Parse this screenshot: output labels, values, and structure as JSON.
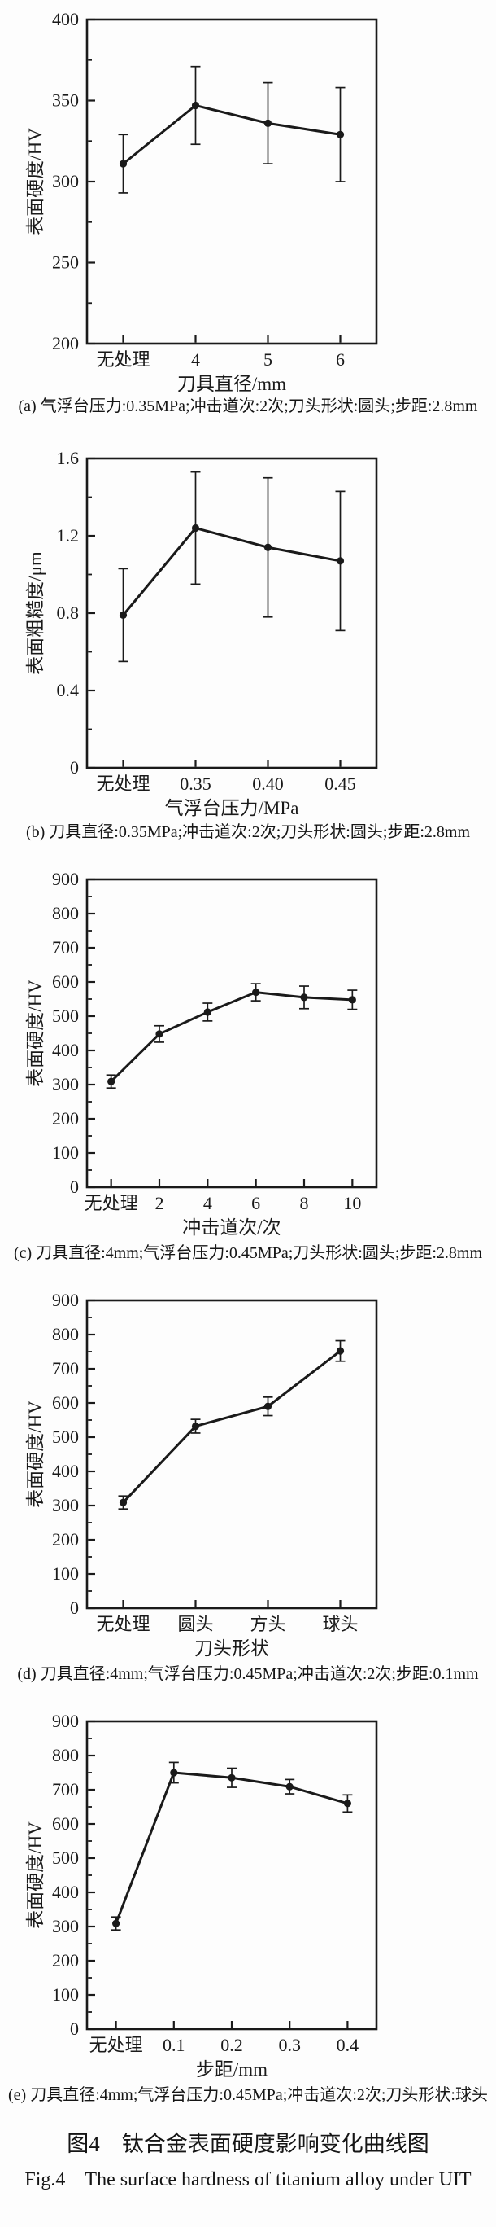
{
  "figure": {
    "caption_cn": "图4　钛合金表面硬度影响变化曲线图",
    "caption_en": "Fig.4　The surface hardness of titanium alloy under UIT",
    "ink_color": "#1a1a1a",
    "background_color": "#fdfdfd"
  },
  "chart_data": [
    {
      "type": "line",
      "panel_label": "(a)",
      "caption": "(a) 气浮台压力:0.35MPa;冲击道次:2次;刀头形状:圆头;步距:2.8mm",
      "xlabel": "刀具直径/mm",
      "ylabel": "表面硬度/HV",
      "ylim": [
        200,
        400
      ],
      "yticks": [
        200,
        250,
        300,
        350,
        400
      ],
      "ytick_labels": [
        "200",
        "250",
        "300",
        "350",
        "400"
      ],
      "minor_ticks_between_majors": true,
      "grid": false,
      "legend": "none",
      "marker": "filled-circle",
      "categories": [
        "无处理",
        "4",
        "5",
        "6"
      ],
      "values": [
        311,
        347,
        336,
        329
      ],
      "errors": [
        18,
        24,
        25,
        29
      ]
    },
    {
      "type": "line",
      "panel_label": "(b)",
      "caption": "(b) 刀具直径:0.35MPa;冲击道次:2次;刀头形状:圆头;步距:2.8mm",
      "xlabel": "气浮台压力/MPa",
      "ylabel": "表面粗糙度/μm",
      "ylim": [
        0,
        1.6
      ],
      "yticks": [
        0,
        0.4,
        0.8,
        1.2,
        1.6
      ],
      "ytick_labels": [
        "0",
        "0.4",
        "0.8",
        "1.2",
        "1.6"
      ],
      "minor_ticks_between_majors": true,
      "grid": false,
      "legend": "none",
      "marker": "filled-circle",
      "categories": [
        "无处理",
        "0.35",
        "0.40",
        "0.45"
      ],
      "values": [
        0.79,
        1.24,
        1.14,
        1.07
      ],
      "errors": [
        0.24,
        0.29,
        0.36,
        0.36
      ]
    },
    {
      "type": "line",
      "panel_label": "(c)",
      "caption": "(c) 刀具直径:4mm;气浮台压力:0.45MPa;刀头形状:圆头;步距:2.8mm",
      "xlabel": "冲击道次/次",
      "ylabel": "表面硬度/HV",
      "ylim": [
        0,
        900
      ],
      "yticks": [
        0,
        100,
        200,
        300,
        400,
        500,
        600,
        700,
        800,
        900
      ],
      "ytick_labels": [
        "0",
        "100",
        "200",
        "300",
        "400",
        "500",
        "600",
        "700",
        "800",
        "900"
      ],
      "minor_ticks_between_majors": true,
      "grid": false,
      "legend": "none",
      "marker": "filled-circle",
      "categories": [
        "无处理",
        "2",
        "4",
        "6",
        "8",
        "10"
      ],
      "values": [
        309,
        448,
        512,
        570,
        555,
        548
      ],
      "errors": [
        19,
        24,
        26,
        25,
        33,
        28
      ]
    },
    {
      "type": "line",
      "panel_label": "(d)",
      "caption": "(d) 刀具直径:4mm;气浮台压力:0.45MPa;冲击道次:2次;步距:0.1mm",
      "xlabel": "刀头形状",
      "ylabel": "表面硬度/HV",
      "ylim": [
        0,
        900
      ],
      "yticks": [
        0,
        100,
        200,
        300,
        400,
        500,
        600,
        700,
        800,
        900
      ],
      "ytick_labels": [
        "0",
        "100",
        "200",
        "300",
        "400",
        "500",
        "600",
        "700",
        "800",
        "900"
      ],
      "minor_ticks_between_majors": true,
      "grid": false,
      "legend": "none",
      "marker": "filled-circle",
      "categories": [
        "无处理",
        "圆头",
        "方头",
        "球头"
      ],
      "values": [
        309,
        532,
        590,
        752
      ],
      "errors": [
        19,
        20,
        27,
        30
      ]
    },
    {
      "type": "line",
      "panel_label": "(e)",
      "caption": "(e) 刀具直径:4mm;气浮台压力:0.45MPa;冲击道次:2次;刀头形状:球头",
      "xlabel": "步距/mm",
      "ylabel": "表面硬度/HV",
      "ylim": [
        0,
        900
      ],
      "yticks": [
        0,
        100,
        200,
        300,
        400,
        500,
        600,
        700,
        800,
        900
      ],
      "ytick_labels": [
        "0",
        "100",
        "200",
        "300",
        "400",
        "500",
        "600",
        "700",
        "800",
        "900"
      ],
      "minor_ticks_between_majors": true,
      "grid": false,
      "legend": "none",
      "marker": "filled-circle",
      "categories": [
        "无处理",
        "0.1",
        "0.2",
        "0.3",
        "0.4"
      ],
      "values": [
        309,
        750,
        735,
        709,
        660
      ],
      "errors": [
        19,
        30,
        28,
        21,
        25
      ]
    }
  ]
}
